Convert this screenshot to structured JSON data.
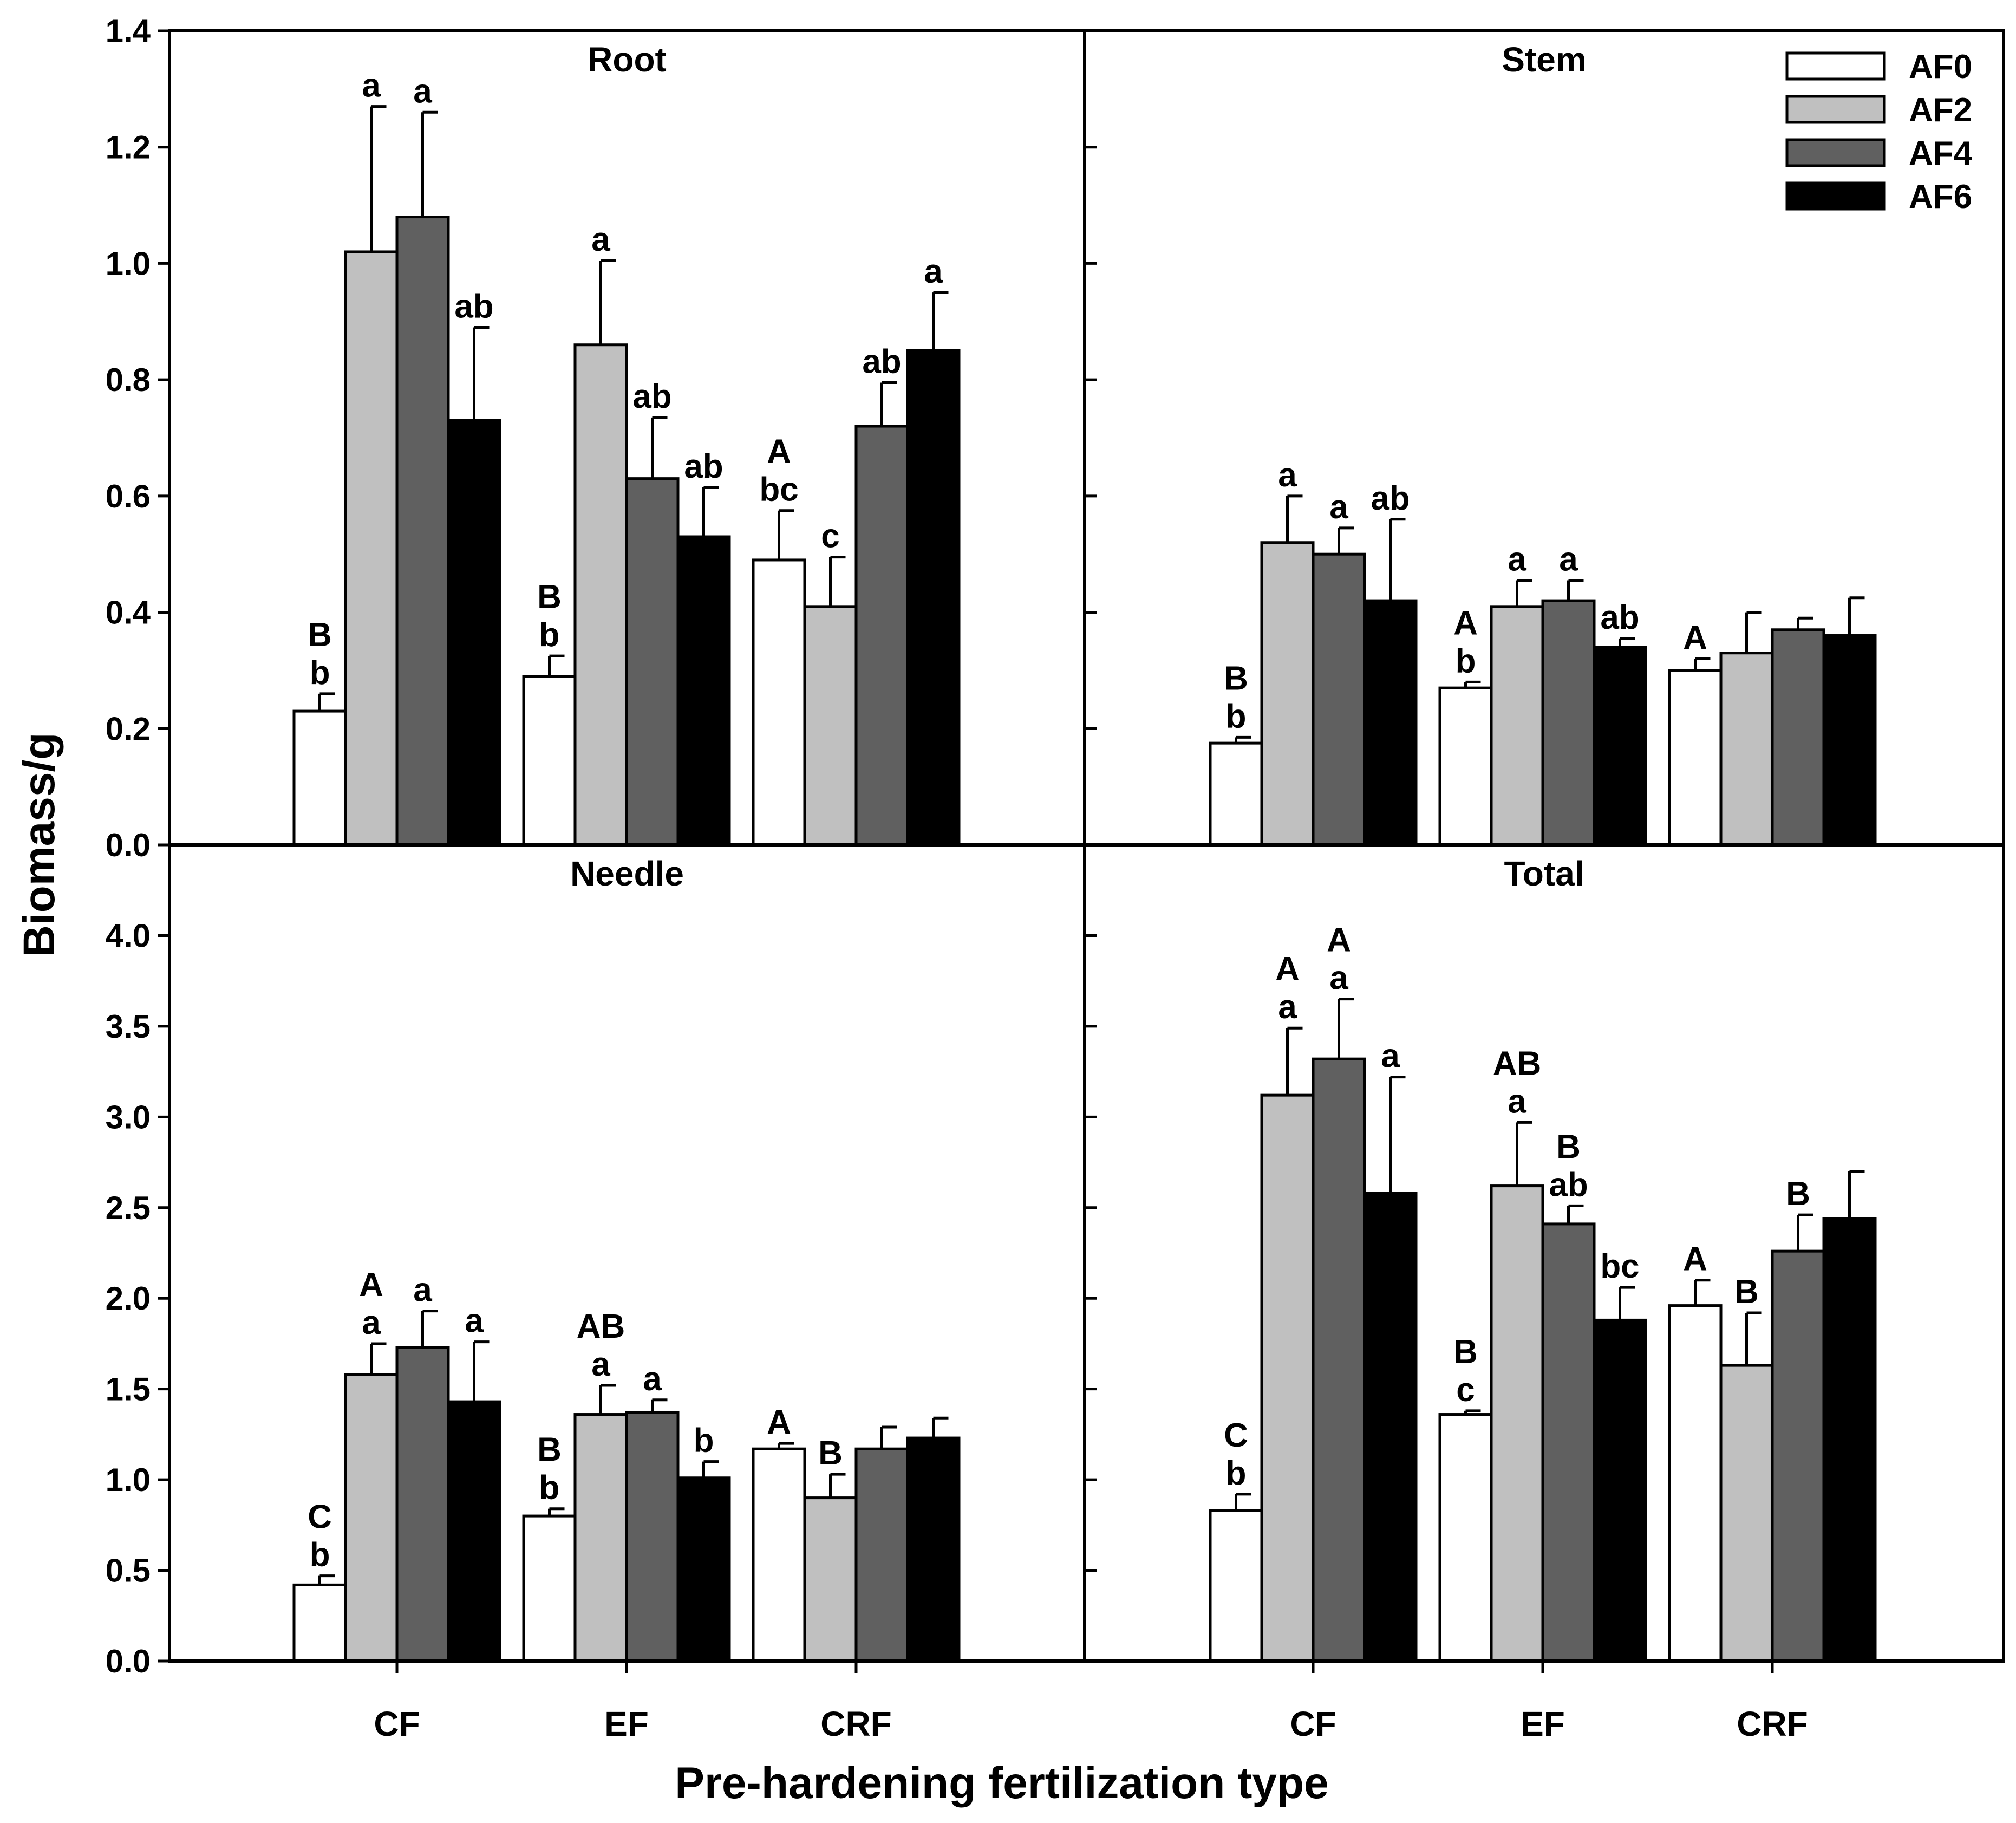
{
  "chart_data": {
    "type": "bar",
    "layout": "2x2 panels, shared y-axis title, shared x-axis title",
    "ylabel": "Biomass/g",
    "xlabel": "Pre-hardening fertilization type",
    "categories": [
      "CF",
      "EF",
      "CRF"
    ],
    "legend": {
      "position": "top-right",
      "entries": [
        {
          "name": "AF0",
          "color": "#ffffff"
        },
        {
          "name": "AF2",
          "color": "#c0c0c0"
        },
        {
          "name": "AF4",
          "color": "#606060"
        },
        {
          "name": "AF6",
          "color": "#000000"
        }
      ]
    },
    "panels": [
      {
        "title": "Root",
        "ylim": [
          0,
          1.4
        ],
        "yticks": [
          "0.0",
          "0.2",
          "0.4",
          "0.6",
          "0.8",
          "1.0",
          "1.2",
          "1.4"
        ],
        "series": [
          {
            "name": "AF0",
            "values": [
              0.23,
              0.29,
              0.49
            ],
            "errors": [
              0.03,
              0.035,
              0.085
            ],
            "labels": [
              [
                "B",
                "b"
              ],
              [
                "B",
                "b"
              ],
              [
                "A",
                "bc"
              ]
            ]
          },
          {
            "name": "AF2",
            "values": [
              1.02,
              0.86,
              0.41
            ],
            "errors": [
              0.25,
              0.145,
              0.085
            ],
            "labels": [
              [
                "a"
              ],
              [
                "a"
              ],
              [
                "c"
              ]
            ]
          },
          {
            "name": "AF4",
            "values": [
              1.08,
              0.63,
              0.72
            ],
            "errors": [
              0.18,
              0.105,
              0.075
            ],
            "labels": [
              [
                "a"
              ],
              [
                "ab"
              ],
              [
                "ab"
              ]
            ]
          },
          {
            "name": "AF6",
            "values": [
              0.73,
              0.53,
              0.85
            ],
            "errors": [
              0.16,
              0.085,
              0.1
            ],
            "labels": [
              [
                "ab"
              ],
              [
                "ab"
              ],
              [
                "a"
              ]
            ]
          }
        ]
      },
      {
        "title": "Stem",
        "ylim": [
          0,
          1.4
        ],
        "yticks": [],
        "series": [
          {
            "name": "AF0",
            "values": [
              0.175,
              0.27,
              0.3
            ],
            "errors": [
              0.01,
              0.01,
              0.02
            ],
            "labels": [
              [
                "B",
                "b"
              ],
              [
                "A",
                "b"
              ],
              [
                "A"
              ]
            ]
          },
          {
            "name": "AF2",
            "values": [
              0.52,
              0.41,
              0.33
            ],
            "errors": [
              0.08,
              0.045,
              0.07
            ],
            "labels": [
              [
                "a"
              ],
              [
                "a"
              ],
              []
            ]
          },
          {
            "name": "AF4",
            "values": [
              0.5,
              0.42,
              0.37
            ],
            "errors": [
              0.045,
              0.035,
              0.02
            ],
            "labels": [
              [
                "a"
              ],
              [
                "a"
              ],
              []
            ]
          },
          {
            "name": "AF6",
            "values": [
              0.42,
              0.34,
              0.36
            ],
            "errors": [
              0.14,
              0.015,
              0.065
            ],
            "labels": [
              [
                "ab"
              ],
              [
                "ab"
              ],
              []
            ]
          }
        ]
      },
      {
        "title": "Needle",
        "ylim": [
          0,
          4.5
        ],
        "yticks": [
          "0.0",
          "0.5",
          "1.0",
          "1.5",
          "2.0",
          "2.5",
          "3.0",
          "3.5",
          "4.0"
        ],
        "series": [
          {
            "name": "AF0",
            "values": [
              0.42,
              0.8,
              1.17
            ],
            "errors": [
              0.05,
              0.04,
              0.03
            ],
            "labels": [
              [
                "C",
                "b"
              ],
              [
                "B",
                "b"
              ],
              [
                "A"
              ]
            ]
          },
          {
            "name": "AF2",
            "values": [
              1.58,
              1.36,
              0.9
            ],
            "errors": [
              0.17,
              0.16,
              0.13
            ],
            "labels": [
              [
                "A",
                "a"
              ],
              [
                "AB",
                "a"
              ],
              [
                "B"
              ]
            ]
          },
          {
            "name": "AF4",
            "values": [
              1.73,
              1.37,
              1.17
            ],
            "errors": [
              0.2,
              0.07,
              0.12
            ],
            "labels": [
              [
                "a"
              ],
              [
                "a"
              ],
              []
            ]
          },
          {
            "name": "AF6",
            "values": [
              1.43,
              1.01,
              1.23
            ],
            "errors": [
              0.33,
              0.09,
              0.11
            ],
            "labels": [
              [
                "a"
              ],
              [
                "b"
              ],
              []
            ]
          }
        ]
      },
      {
        "title": "Total",
        "ylim": [
          0,
          4.5
        ],
        "yticks": [],
        "series": [
          {
            "name": "AF0",
            "values": [
              0.83,
              1.36,
              1.96
            ],
            "errors": [
              0.09,
              0.02,
              0.14
            ],
            "labels": [
              [
                "C",
                "b"
              ],
              [
                "B",
                "c"
              ],
              [
                "A"
              ]
            ]
          },
          {
            "name": "AF2",
            "values": [
              3.12,
              2.62,
              1.63
            ],
            "errors": [
              0.37,
              0.35,
              0.29
            ],
            "labels": [
              [
                "A",
                "a"
              ],
              [
                "AB",
                "a"
              ],
              [
                "B"
              ]
            ]
          },
          {
            "name": "AF4",
            "values": [
              3.32,
              2.41,
              2.26
            ],
            "errors": [
              0.33,
              0.1,
              0.2
            ],
            "labels": [
              [
                "A",
                "a"
              ],
              [
                "B",
                "ab"
              ],
              [
                "B"
              ]
            ]
          },
          {
            "name": "AF6",
            "values": [
              2.58,
              1.88,
              2.44
            ],
            "errors": [
              0.64,
              0.18,
              0.26
            ],
            "labels": [
              [
                "a"
              ],
              [
                "bc"
              ],
              []
            ]
          }
        ]
      }
    ]
  }
}
